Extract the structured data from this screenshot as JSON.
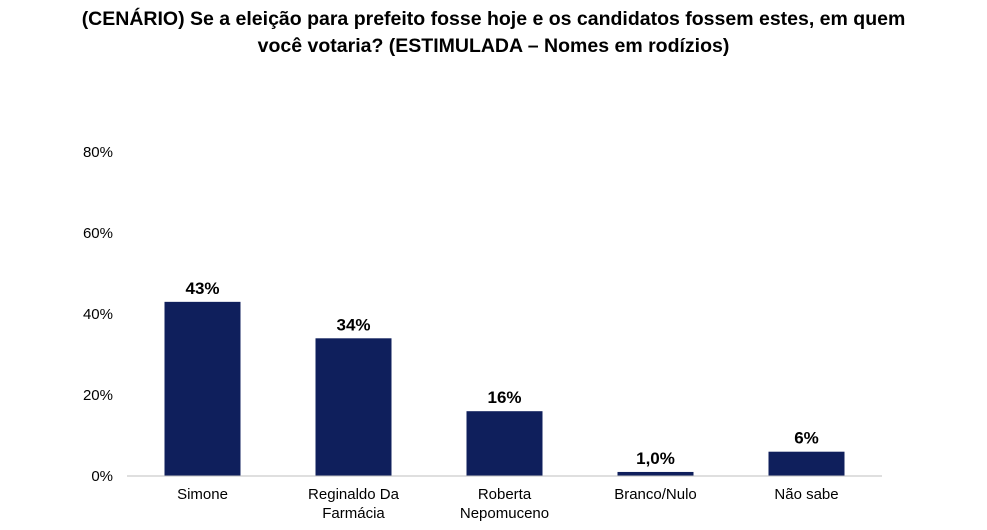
{
  "chart_data": {
    "type": "bar",
    "title_lines": [
      "(CENÁRIO) Se a eleição para prefeito fosse hoje e os candidatos fossem estes, em quem",
      "você votaria? (ESTIMULADA – Nomes em rodízios)"
    ],
    "categories": [
      [
        "Simone"
      ],
      [
        "Reginaldo Da",
        "Farmácia"
      ],
      [
        "Roberta",
        "Nepomuceno"
      ],
      [
        "Branco/Nulo"
      ],
      [
        "Não sabe"
      ]
    ],
    "values": [
      43,
      34,
      16,
      1.0,
      6
    ],
    "data_labels": [
      "43%",
      "34%",
      "16%",
      "1,0%",
      "6%"
    ],
    "y_ticks": [
      0,
      20,
      40,
      60,
      80
    ],
    "y_tick_labels": [
      "0%",
      "20%",
      "40%",
      "60%",
      "80%"
    ],
    "ylim": [
      0,
      80
    ],
    "grid": false,
    "legend": "none",
    "bar_color": "#0f1f5c",
    "axis_color": "#bfbfbf"
  }
}
